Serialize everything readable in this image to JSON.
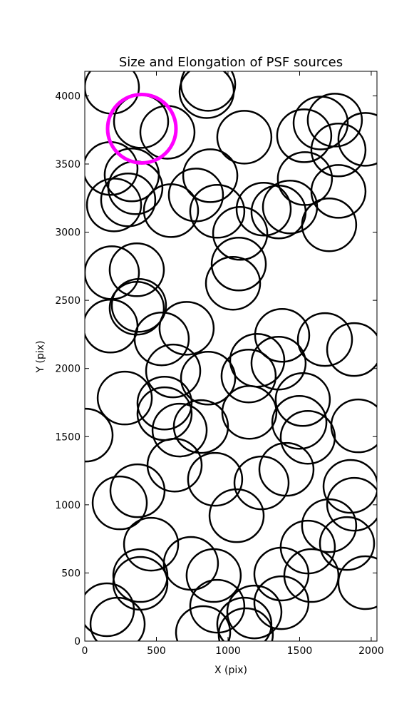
{
  "chart_data": {
    "type": "scatter",
    "title": "Size and Elongation of PSF sources",
    "x_label": "X (pix)",
    "y_label": "Y (pix)",
    "xlim": [
      0,
      2040
    ],
    "ylim": [
      0,
      4180
    ],
    "xticks": [
      0,
      500,
      1000,
      1500,
      2000
    ],
    "yticks": [
      0,
      500,
      1000,
      1500,
      2000,
      2500,
      3000,
      3500,
      4000
    ],
    "series": [
      {
        "color": "#000000",
        "x": [
          189,
          393,
          851,
          861,
          577,
          179,
          328,
          353,
          303,
          204,
          602,
          776,
          876,
          925,
          1114,
          1085,
          1075,
          1035,
          189,
          363,
          378,
          363,
          179,
          537,
          711,
          617,
          861,
          1144,
          1204,
          1353,
          1378,
          1677,
          1881,
          279,
          557,
          557,
          662,
          811,
          1149,
          1522,
          1498,
          1557,
          1910,
          5,
          627,
          368,
          244,
          910,
          1060,
          1234,
          1408,
          1856,
          1881,
          1706,
          1557,
          1831,
          1960,
          1582,
          1373,
          1373,
          1184,
          1114,
          1124,
          925,
          900,
          741,
          463,
          388,
          388,
          154,
          229,
          826,
          1746,
          1647,
          1771,
          1960,
          1532,
          1537,
          1771,
          1706,
          1433,
          1249,
          1353
        ],
        "y": [
          4063,
          3812,
          4031,
          4084,
          3733,
          3467,
          3420,
          3326,
          3237,
          3200,
          3158,
          3273,
          3414,
          3153,
          3697,
          2991,
          2766,
          2625,
          2703,
          2724,
          2463,
          2442,
          2311,
          2217,
          2295,
          1982,
          1929,
          1945,
          2060,
          2039,
          2243,
          2212,
          2139,
          1783,
          1746,
          1668,
          1548,
          1574,
          1678,
          1772,
          1605,
          1495,
          1579,
          1511,
          1291,
          1103,
          1014,
          1187,
          920,
          1161,
          1260,
          1135,
          1004,
          847,
          690,
          716,
          429,
          481,
          492,
          282,
          214,
          125,
          47,
          256,
          481,
          570,
          711,
          481,
          424,
          230,
          125,
          63,
          3822,
          3801,
          3603,
          3681,
          3707,
          3393,
          3299,
          3054,
          3185,
          3169,
          3148
        ]
      },
      {
        "color": "#ff00ff",
        "x": [
          398
        ],
        "y": [
          3759
        ]
      }
    ]
  }
}
